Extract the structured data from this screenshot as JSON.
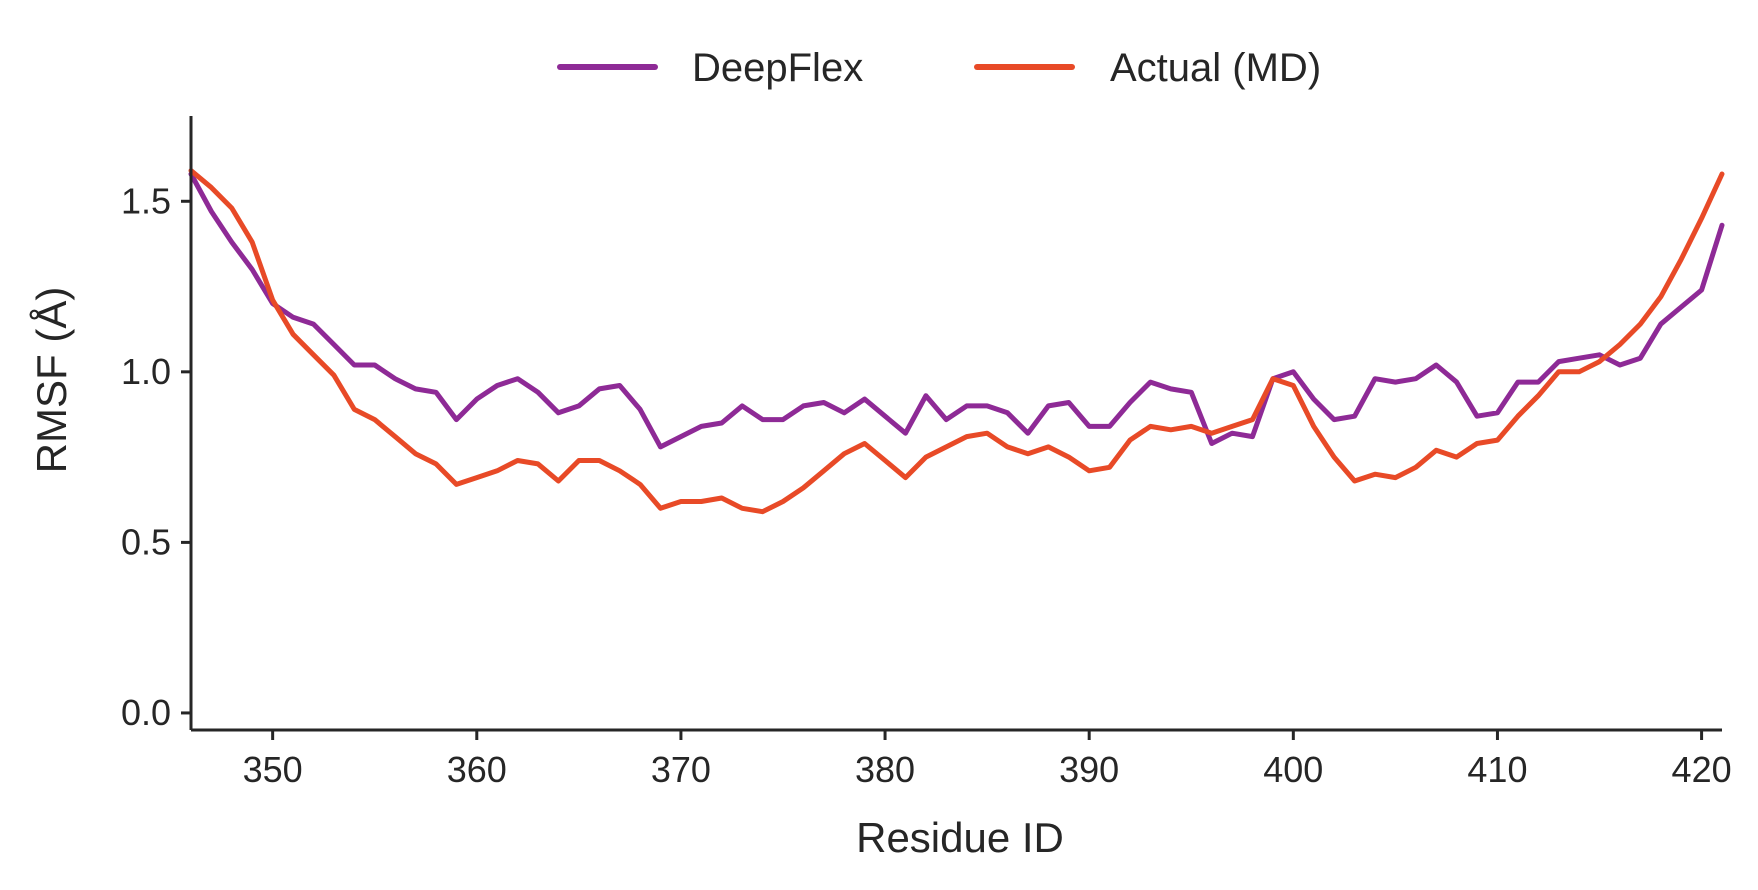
{
  "chart_data": {
    "type": "line",
    "title": "",
    "xlabel": "Residue ID",
    "ylabel": "RMSF (Å)",
    "xlim": [
      346,
      421
    ],
    "ylim": [
      -0.05,
      1.75
    ],
    "xticks": [
      350,
      360,
      370,
      380,
      390,
      400,
      410,
      420
    ],
    "yticks": [
      0.0,
      0.5,
      1.0,
      1.5
    ],
    "ytick_labels": [
      "0.0",
      "0.5",
      "1.0",
      "1.5"
    ],
    "grid": false,
    "legend": "top-center",
    "x": [
      346,
      347,
      348,
      349,
      350,
      351,
      352,
      353,
      354,
      355,
      356,
      357,
      358,
      359,
      360,
      361,
      362,
      363,
      364,
      365,
      366,
      367,
      368,
      369,
      370,
      371,
      372,
      373,
      374,
      375,
      376,
      377,
      378,
      379,
      380,
      381,
      382,
      383,
      384,
      385,
      386,
      387,
      388,
      389,
      390,
      391,
      392,
      393,
      394,
      395,
      396,
      397,
      398,
      399,
      400,
      401,
      402,
      403,
      404,
      405,
      406,
      407,
      408,
      409,
      410,
      411,
      412,
      413,
      414,
      415,
      416,
      417,
      418,
      419,
      420,
      421
    ],
    "series": [
      {
        "name": "DeepFlex",
        "color": "#8e2a96",
        "values": [
          1.58,
          1.47,
          1.38,
          1.3,
          1.2,
          1.16,
          1.14,
          1.08,
          1.02,
          1.02,
          0.98,
          0.95,
          0.94,
          0.86,
          0.92,
          0.96,
          0.98,
          0.94,
          0.88,
          0.9,
          0.95,
          0.96,
          0.89,
          0.78,
          0.81,
          0.84,
          0.85,
          0.9,
          0.86,
          0.86,
          0.9,
          0.91,
          0.88,
          0.92,
          0.87,
          0.82,
          0.93,
          0.86,
          0.9,
          0.9,
          0.88,
          0.82,
          0.9,
          0.91,
          0.84,
          0.84,
          0.91,
          0.97,
          0.95,
          0.94,
          0.79,
          0.82,
          0.81,
          0.98,
          1.0,
          0.92,
          0.86,
          0.87,
          0.98,
          0.97,
          0.98,
          1.02,
          0.97,
          0.87,
          0.88,
          0.97,
          0.97,
          1.03,
          1.04,
          1.05,
          1.02,
          1.04,
          1.14,
          1.19,
          1.24,
          1.43
        ]
      },
      {
        "name": "Actual (MD)",
        "color": "#e84a27",
        "values": [
          1.59,
          1.54,
          1.48,
          1.38,
          1.21,
          1.11,
          1.05,
          0.99,
          0.89,
          0.86,
          0.81,
          0.76,
          0.73,
          0.67,
          0.69,
          0.71,
          0.74,
          0.73,
          0.68,
          0.74,
          0.74,
          0.71,
          0.67,
          0.6,
          0.62,
          0.62,
          0.63,
          0.6,
          0.59,
          0.62,
          0.66,
          0.71,
          0.76,
          0.79,
          0.74,
          0.69,
          0.75,
          0.78,
          0.81,
          0.82,
          0.78,
          0.76,
          0.78,
          0.75,
          0.71,
          0.72,
          0.8,
          0.84,
          0.83,
          0.84,
          0.82,
          0.84,
          0.86,
          0.98,
          0.96,
          0.84,
          0.75,
          0.68,
          0.7,
          0.69,
          0.72,
          0.77,
          0.75,
          0.79,
          0.8,
          0.87,
          0.93,
          1.0,
          1.0,
          1.03,
          1.08,
          1.14,
          1.22,
          1.33,
          1.45,
          1.58
        ]
      }
    ]
  }
}
